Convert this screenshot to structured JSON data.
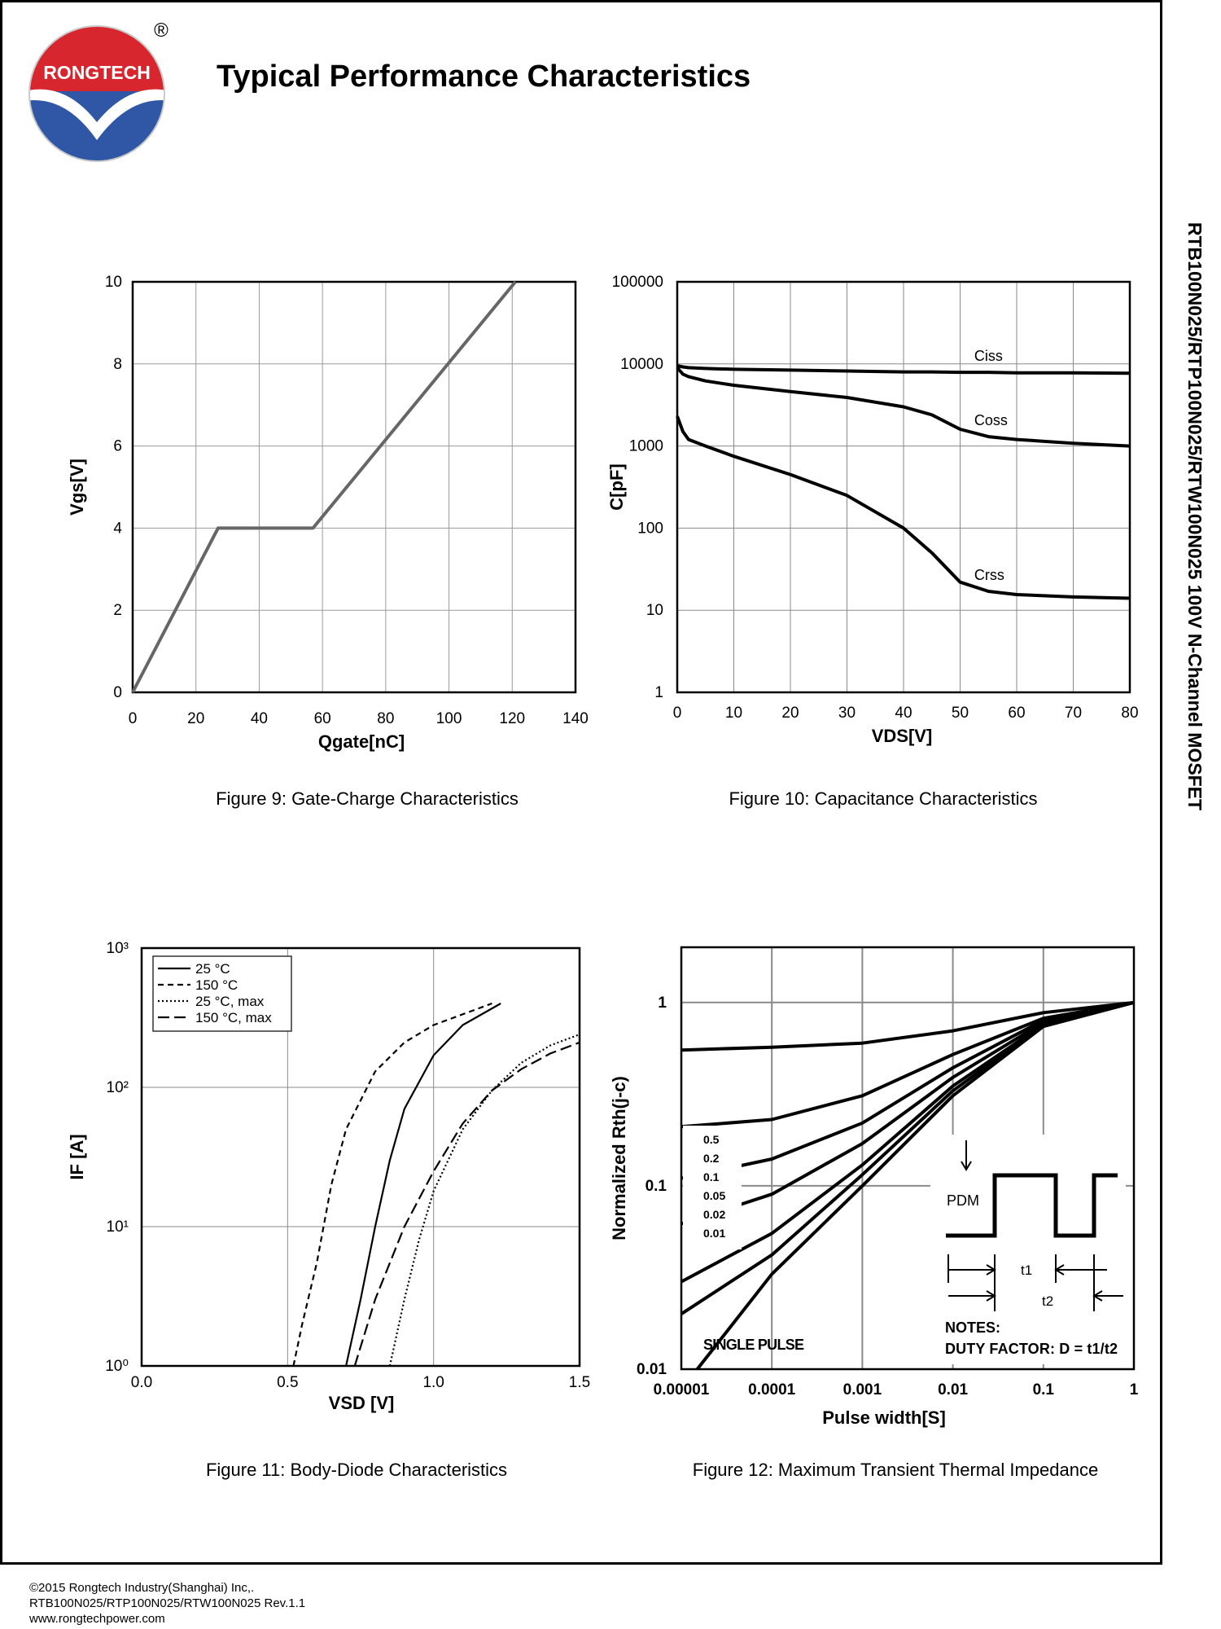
{
  "header": {
    "logo": "RONGTECH",
    "logo_mark": "®",
    "title": "Typical Performance Characteristics"
  },
  "side_title": "RTB100N025/RTP100N025/RTW100N025 100V N-Channel MOSFET",
  "chart_data": [
    {
      "type": "line",
      "caption": "Figure 9: Gate-Charge Characteristics",
      "xlabel": "Qgate[nC]",
      "ylabel": "Vgs[V]",
      "x": [
        0,
        27,
        57,
        121
      ],
      "values": [
        0,
        4,
        4,
        10
      ],
      "color": "#666666",
      "xlim": [
        0,
        140
      ],
      "xticks": [
        0,
        20,
        40,
        60,
        80,
        100,
        120,
        140
      ],
      "ylim": [
        0,
        10
      ],
      "yticks": [
        0,
        2,
        4,
        6,
        8,
        10
      ],
      "grid": true
    },
    {
      "type": "line",
      "caption": "Figure 10: Capacitance Characteristics",
      "xlabel": "VDS[V]",
      "ylabel": "C[pF]",
      "log_y": true,
      "x": [
        0,
        1,
        2,
        5,
        10,
        20,
        30,
        40,
        45,
        50,
        55,
        60,
        70,
        80
      ],
      "series": [
        {
          "name": "Ciss",
          "color": "#000000",
          "values": [
            9500,
            9200,
            9000,
            8800,
            8600,
            8400,
            8200,
            8000,
            8000,
            7900,
            7900,
            7800,
            7800,
            7700
          ]
        },
        {
          "name": "Coss",
          "color": "#000000",
          "values": [
            9000,
            7500,
            7000,
            6200,
            5500,
            4600,
            3900,
            3000,
            2400,
            1600,
            1300,
            1200,
            1080,
            1000
          ]
        },
        {
          "name": "Crss",
          "color": "#000000",
          "values": [
            2300,
            1500,
            1200,
            1000,
            750,
            450,
            250,
            100,
            50,
            22,
            17,
            15.5,
            14.5,
            14
          ]
        }
      ],
      "xlim": [
        0,
        80
      ],
      "xticks": [
        0,
        10,
        20,
        30,
        40,
        50,
        60,
        70,
        80
      ],
      "ylim": [
        1,
        100000
      ],
      "yticks": [
        1,
        10,
        100,
        1000,
        10000,
        100000
      ],
      "grid": true
    },
    {
      "type": "line",
      "caption": "Figure 11: Body-Diode Characteristics",
      "xlabel": "VSD [V]",
      "ylabel": "IF [A]",
      "log_y": true,
      "legend": "upper-left",
      "series": [
        {
          "name": "25 °C",
          "color": "#000000",
          "dash": "solid",
          "x": [
            0.7,
            0.75,
            0.8,
            0.85,
            0.9,
            1.0,
            1.1,
            1.23
          ],
          "values": [
            1,
            3,
            10,
            30,
            70,
            170,
            280,
            400
          ]
        },
        {
          "name": "150 °C",
          "color": "#000000",
          "dash": "dashed",
          "x": [
            0.52,
            0.55,
            0.6,
            0.65,
            0.7,
            0.8,
            0.9,
            1.0,
            1.2
          ],
          "values": [
            1,
            2,
            5.5,
            20,
            50,
            130,
            210,
            280,
            400
          ]
        },
        {
          "name": "25 °C, max",
          "color": "#000000",
          "dash": "dotted",
          "x": [
            0.85,
            0.9,
            0.95,
            1.0,
            1.1,
            1.2,
            1.3,
            1.4,
            1.5
          ],
          "values": [
            1,
            3,
            8,
            18,
            50,
            95,
            150,
            200,
            240
          ]
        },
        {
          "name": "150 °C, max",
          "color": "#000000",
          "dash": "long-dashed",
          "x": [
            0.73,
            0.8,
            0.9,
            1.0,
            1.1,
            1.2,
            1.3,
            1.4,
            1.5
          ],
          "values": [
            1,
            3,
            10,
            25,
            55,
            95,
            135,
            175,
            210
          ]
        }
      ],
      "xlim": [
        0,
        1.5
      ],
      "xticks": [
        {
          "value": 0,
          "label": "0.0"
        },
        0.5,
        {
          "value": 1,
          "label": "1.0"
        },
        1.5
      ],
      "ylim": [
        1,
        1000
      ],
      "yticks": [
        {
          "value": 1,
          "label": "10⁰"
        },
        {
          "value": 10,
          "label": "10¹"
        },
        {
          "value": 100,
          "label": "10²"
        },
        {
          "value": 1000,
          "label": "10³"
        }
      ],
      "grid": true
    },
    {
      "type": "line",
      "caption": "Figure 12: Maximum Transient Thermal Impedance",
      "xlabel": "Pulse width[S]",
      "ylabel": "Normalized Rth(j-c)",
      "log_x": true,
      "log_y": true,
      "series": [
        {
          "name": "0.5",
          "color": "#000000",
          "x": [
            1e-05,
            0.0001,
            0.001,
            0.01,
            0.1,
            1
          ],
          "values": [
            0.55,
            0.57,
            0.6,
            0.7,
            0.88,
            1
          ]
        },
        {
          "name": "0.2",
          "color": "#000000",
          "x": [
            1e-05,
            0.0001,
            0.001,
            0.01,
            0.1,
            1
          ],
          "values": [
            0.21,
            0.23,
            0.31,
            0.52,
            0.82,
            1
          ]
        },
        {
          "name": "0.1",
          "color": "#000000",
          "x": [
            1e-05,
            0.0001,
            0.001,
            0.01,
            0.1,
            1
          ],
          "values": [
            0.11,
            0.14,
            0.22,
            0.44,
            0.8,
            1
          ]
        },
        {
          "name": "0.05",
          "color": "#000000",
          "x": [
            1e-05,
            0.0001,
            0.001,
            0.01,
            0.1,
            1
          ],
          "values": [
            0.062,
            0.09,
            0.17,
            0.39,
            0.78,
            1
          ]
        },
        {
          "name": "0.02",
          "color": "#000000",
          "x": [
            1e-05,
            0.0001,
            0.001,
            0.01,
            0.1,
            1
          ],
          "values": [
            0.03,
            0.055,
            0.13,
            0.35,
            0.76,
            1
          ]
        },
        {
          "name": "0.01",
          "color": "#000000",
          "x": [
            1e-05,
            0.0001,
            0.001,
            0.01,
            0.1,
            1
          ],
          "values": [
            0.02,
            0.042,
            0.115,
            0.33,
            0.75,
            1
          ]
        },
        {
          "name": "SINGLE PULSE",
          "color": "#000000",
          "x": [
            1.5e-05,
            0.0001,
            0.001,
            0.01,
            0.1,
            1
          ],
          "values": [
            0.01,
            0.033,
            0.1,
            0.31,
            0.74,
            1
          ]
        }
      ],
      "xlim": [
        1e-05,
        1
      ],
      "xticks": [
        1e-05,
        0.0001,
        0.001,
        0.01,
        0.1,
        1
      ],
      "ylim": [
        0.01,
        2
      ],
      "yticks": [
        0.01,
        0.1,
        1
      ],
      "grid": true,
      "annotations": {
        "pdm": "PDM",
        "t1": "t1",
        "t2": "t2",
        "notes": "NOTES:",
        "duty": "DUTY FACTOR: D = t1/t2"
      }
    }
  ],
  "footer": [
    "©2015 Rongtech Industry(Shanghai) Inc,.",
    "RTB100N025/RTP100N025/RTW100N025 Rev.1.1",
    "www.rongtechpower.com"
  ]
}
